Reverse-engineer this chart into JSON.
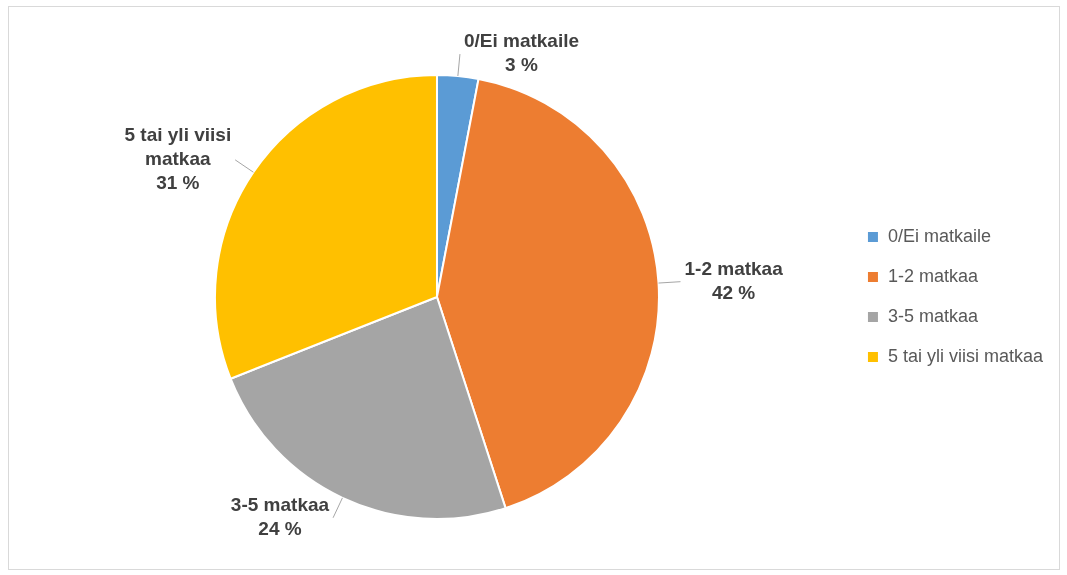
{
  "chart_data": {
    "type": "pie",
    "categories": [
      "0/Ei matkaile",
      "1-2 matkaa",
      "3-5 matkaa",
      "5 tai yli viisi matkaa"
    ],
    "values": [
      3,
      42,
      24,
      31
    ],
    "value_labels": [
      "3 %",
      "42 %",
      "24 %",
      "31 %"
    ],
    "colors": [
      "#5b9bd5",
      "#ed7d31",
      "#a5a5a5",
      "#ffc000"
    ],
    "legend": "right"
  }
}
